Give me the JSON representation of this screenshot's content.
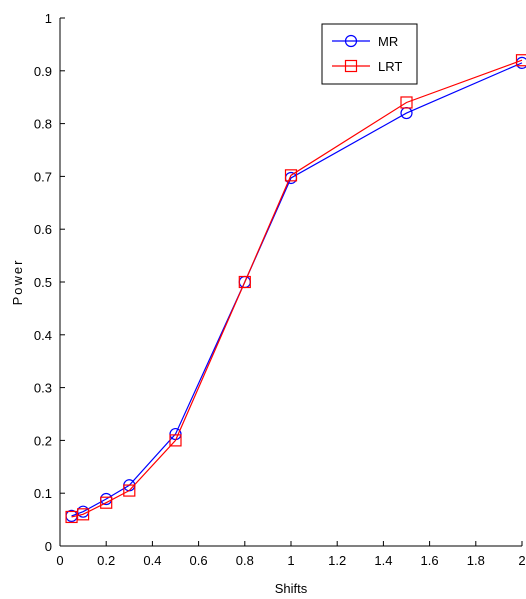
{
  "chart_data": {
    "type": "line",
    "title": "",
    "xlabel": "Shifts",
    "ylabel": "Power",
    "xlim": [
      0,
      2
    ],
    "ylim": [
      0,
      1
    ],
    "xticks": [
      0,
      0.2,
      0.4,
      0.6,
      0.8,
      1,
      1.2,
      1.4,
      1.6,
      1.8,
      2
    ],
    "xtick_labels": [
      "0",
      "0.2",
      "0.4",
      "0.6",
      "0.8",
      "1",
      "1.2",
      "1.4",
      "1.6",
      "1.8",
      "2"
    ],
    "yticks": [
      0,
      0.1,
      0.2,
      0.3,
      0.4,
      0.5,
      0.6,
      0.7,
      0.8,
      0.9,
      1
    ],
    "ytick_labels": [
      "0",
      "0.1",
      "0.2",
      "0.3",
      "0.4",
      "0.5",
      "0.6",
      "0.7",
      "0.8",
      "0.9",
      "1"
    ],
    "grid": false,
    "legend_position": "top-right",
    "x": [
      0.05,
      0.1,
      0.2,
      0.3,
      0.5,
      0.8,
      1.0,
      1.5,
      2.0
    ],
    "series": [
      {
        "name": "MR",
        "color": "#0000ff",
        "marker": "circle",
        "values": [
          0.057,
          0.065,
          0.089,
          0.115,
          0.212,
          0.5,
          0.697,
          0.82,
          0.915
        ]
      },
      {
        "name": "LRT",
        "color": "#ff0000",
        "marker": "square",
        "values": [
          0.055,
          0.06,
          0.082,
          0.105,
          0.2,
          0.5,
          0.702,
          0.84,
          0.92
        ]
      }
    ]
  }
}
